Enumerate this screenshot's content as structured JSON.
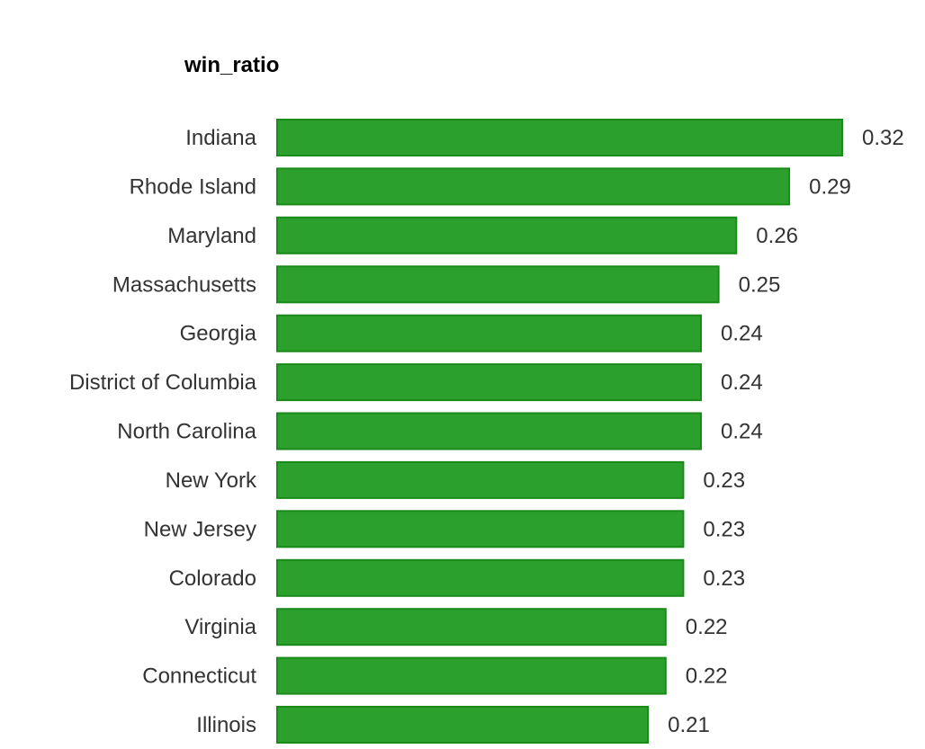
{
  "chart_data": {
    "type": "bar",
    "orientation": "horizontal",
    "title": "win_ratio",
    "xlabel": "",
    "ylabel": "",
    "categories": [
      "Indiana",
      "Rhode Island",
      "Maryland",
      "Massachusetts",
      "Georgia",
      "District of Columbia",
      "North Carolina",
      "New York",
      "New Jersey",
      "Colorado",
      "Virginia",
      "Connecticut",
      "Illinois"
    ],
    "values": [
      0.32,
      0.29,
      0.26,
      0.25,
      0.24,
      0.24,
      0.24,
      0.23,
      0.23,
      0.23,
      0.22,
      0.22,
      0.21
    ],
    "value_labels": [
      "0.32",
      "0.29",
      "0.26",
      "0.25",
      "0.24",
      "0.24",
      "0.24",
      "0.23",
      "0.23",
      "0.23",
      "0.22",
      "0.22",
      "0.21"
    ],
    "xlim": [
      0,
      0.32
    ],
    "grid": false,
    "legend": "none",
    "colors": {
      "bar_fill": "#2ca02c",
      "bar_stroke": "#1a8a1a"
    }
  }
}
